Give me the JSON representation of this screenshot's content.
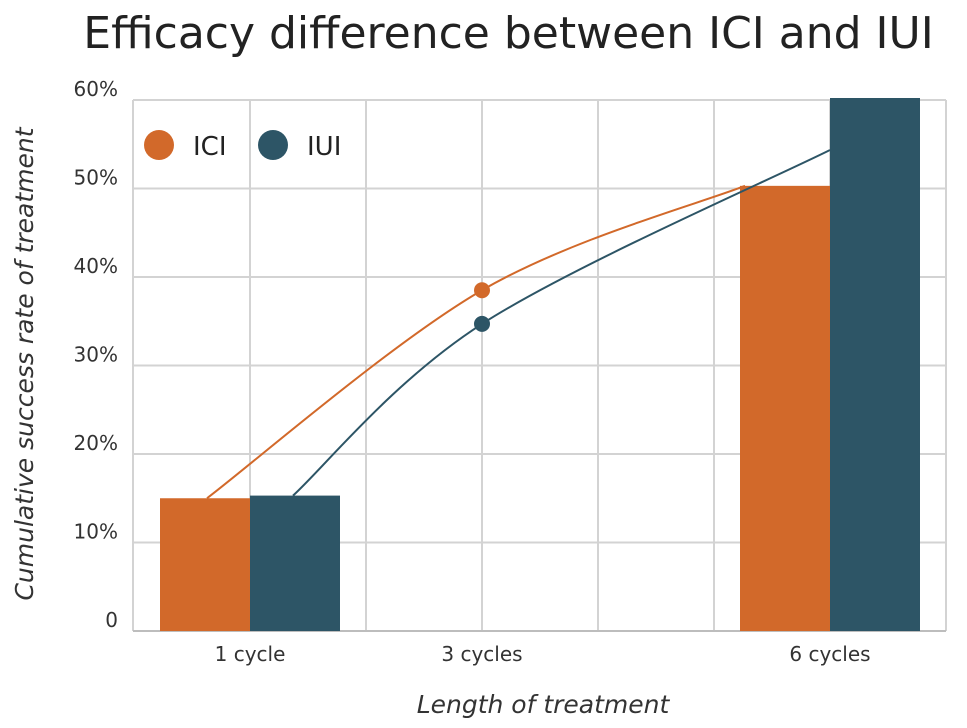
{
  "chart_data": {
    "type": "bar",
    "title": "Efficacy difference between ICI and IUI",
    "xlabel": "Length of treatment",
    "ylabel": "Cumulative success rate of treatment",
    "categories": [
      "1 cycle",
      "3 cycles",
      "6 cycles"
    ],
    "y_ticks": [
      0,
      10,
      20,
      30,
      40,
      50,
      60
    ],
    "y_tick_labels": [
      "0",
      "10%",
      "20%",
      "30%",
      "40%",
      "50%",
      "60%"
    ],
    "ylim": [
      0,
      60
    ],
    "grid": true,
    "legend_position": "top-left",
    "series": [
      {
        "name": "ICI",
        "color": "#D2692A",
        "bars": [
          {
            "category": "1 cycle",
            "value": 15
          },
          {
            "category": "6 cycles",
            "value": 50.3
          }
        ],
        "trend": [
          {
            "category": "1 cycle",
            "value": 15
          },
          {
            "category": "3 cycles",
            "value": 38.5
          },
          {
            "category": "6 cycles",
            "value": 50.3
          }
        ]
      },
      {
        "name": "IUI",
        "color": "#2D5566",
        "bars": [
          {
            "category": "1 cycle",
            "value": 15.3
          },
          {
            "category": "6 cycles",
            "value": 60.4
          }
        ],
        "trend": [
          {
            "category": "1 cycle",
            "value": 15.3
          },
          {
            "category": "3 cycles",
            "value": 34.7
          },
          {
            "category": "6 cycles",
            "value": 60.4
          }
        ]
      }
    ]
  }
}
